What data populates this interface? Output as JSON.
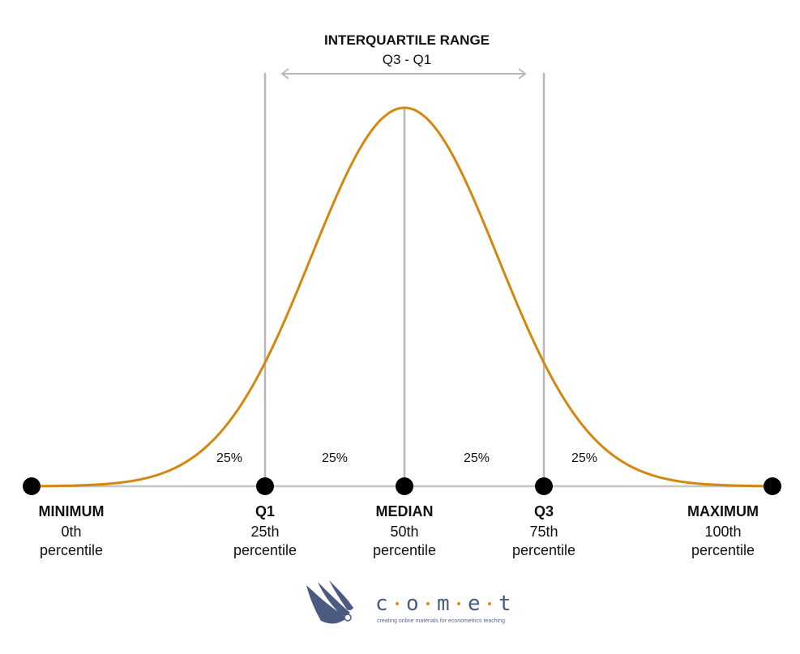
{
  "header": {
    "title": "INTERQUARTILE RANGE",
    "subtitle": "Q3 - Q1"
  },
  "segments": [
    "25%",
    "25%",
    "25%",
    "25%"
  ],
  "points": [
    {
      "name": "MINIMUM",
      "line1": "0th",
      "line2": "percentile"
    },
    {
      "name": "Q1",
      "line1": "25th",
      "line2": "percentile"
    },
    {
      "name": "MEDIAN",
      "line1": "50th",
      "line2": "percentile"
    },
    {
      "name": "Q3",
      "line1": "75th",
      "line2": "percentile"
    },
    {
      "name": "MAXIMUM",
      "line1": "100th",
      "line2": "percentile"
    }
  ],
  "colors": {
    "curve": "#d4870f",
    "guide_lines": "#b8b8b8",
    "points": "#000000",
    "logo_primary": "#4a5a80",
    "logo_accent": "#e08a1e"
  },
  "logo": {
    "letters": [
      "c",
      "o",
      "m",
      "e",
      "t"
    ],
    "tagline": "creating online materials for econometrics teaching"
  }
}
